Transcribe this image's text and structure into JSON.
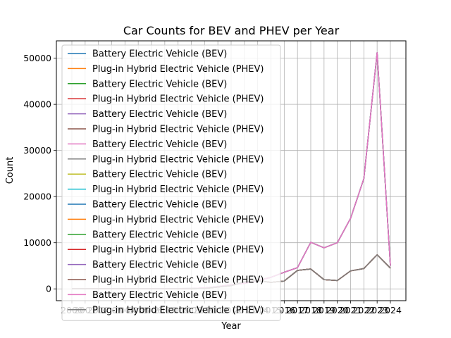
{
  "chart_data": {
    "type": "line",
    "title": "Car Counts for BEV and PHEV per Year",
    "xlabel": "Year",
    "ylabel": "Count",
    "categories": [
      "2000",
      "2001",
      "2002",
      "2003",
      "2004",
      "2005",
      "2006",
      "2007",
      "2008",
      "2009",
      "2010",
      "2011",
      "2012",
      "2013",
      "2014",
      "2015",
      "2016",
      "2017",
      "2018",
      "2019",
      "2020",
      "2021",
      "2022",
      "2023",
      "2024"
    ],
    "y_ticks": [
      0,
      10000,
      20000,
      30000,
      40000,
      50000
    ],
    "y_tick_labels": [
      "0",
      "10000",
      "20000",
      "30000",
      "40000",
      "50000"
    ],
    "ylim": [
      -2560,
      53760
    ],
    "grid": true,
    "legend_position": "upper-left",
    "series": [
      {
        "name": "Battery Electric Vehicle (BEV)",
        "color": "#1f77b4",
        "values": [
          10,
          10,
          20,
          30,
          20,
          30,
          30,
          40,
          40,
          50,
          100,
          400,
          700,
          1500,
          1800,
          1400,
          1700,
          4000,
          4300,
          2000,
          1800,
          3900,
          4400,
          7400,
          4500
        ]
      },
      {
        "name": "Plug-in Hybrid Electric Vehicle (PHEV)",
        "color": "#ff7f0e",
        "values": [
          10,
          10,
          20,
          30,
          20,
          30,
          30,
          40,
          40,
          50,
          100,
          400,
          700,
          1500,
          1800,
          1400,
          1700,
          4000,
          4300,
          2000,
          1800,
          3900,
          4400,
          7400,
          4500
        ]
      },
      {
        "name": "Battery Electric Vehicle (BEV)",
        "color": "#2ca02c",
        "values": [
          10,
          10,
          20,
          30,
          20,
          30,
          30,
          40,
          40,
          50,
          100,
          400,
          700,
          1500,
          1800,
          1400,
          1700,
          4000,
          4300,
          2000,
          1800,
          3900,
          4400,
          7400,
          4500
        ]
      },
      {
        "name": "Plug-in Hybrid Electric Vehicle (PHEV)",
        "color": "#d62728",
        "values": [
          10,
          10,
          20,
          30,
          20,
          30,
          30,
          40,
          40,
          50,
          100,
          400,
          700,
          1500,
          1800,
          1400,
          1700,
          4000,
          4300,
          2000,
          1800,
          3900,
          4400,
          7400,
          4500
        ]
      },
      {
        "name": "Battery Electric Vehicle (BEV)",
        "color": "#9467bd",
        "values": [
          10,
          10,
          20,
          30,
          20,
          30,
          30,
          40,
          40,
          50,
          100,
          400,
          700,
          1500,
          1800,
          1400,
          1700,
          4000,
          4300,
          2000,
          1800,
          3900,
          4400,
          7400,
          4500
        ]
      },
      {
        "name": "Plug-in Hybrid Electric Vehicle (PHEV)",
        "color": "#8c564b",
        "values": [
          10,
          10,
          20,
          30,
          20,
          30,
          30,
          40,
          40,
          50,
          100,
          400,
          700,
          1500,
          1800,
          1400,
          1700,
          4000,
          4300,
          2000,
          1800,
          3900,
          4400,
          7400,
          4500
        ]
      },
      {
        "name": "Battery Electric Vehicle (BEV)",
        "color": "#e377c2",
        "values": [
          10,
          10,
          20,
          30,
          20,
          30,
          30,
          50,
          60,
          100,
          200,
          500,
          900,
          1200,
          1800,
          2500,
          3600,
          4600,
          10100,
          8900,
          10000,
          15300,
          23900,
          51200,
          5000
        ]
      },
      {
        "name": "Plug-in Hybrid Electric Vehicle (PHEV)",
        "color": "#7f7f7f",
        "values": [
          10,
          10,
          20,
          30,
          20,
          30,
          30,
          40,
          40,
          50,
          100,
          400,
          700,
          1500,
          1800,
          1400,
          1700,
          4000,
          4300,
          2000,
          1800,
          3900,
          4400,
          7400,
          4500
        ]
      },
      {
        "name": "Battery Electric Vehicle (BEV)",
        "color": "#bcbd22",
        "values": [
          10,
          10,
          20,
          30,
          20,
          30,
          30,
          50,
          60,
          100,
          200,
          500,
          900,
          1200,
          1800,
          2500,
          3600,
          4600,
          10100,
          8900,
          10000,
          15300,
          23900,
          51200,
          5000
        ]
      },
      {
        "name": "Plug-in Hybrid Electric Vehicle (PHEV)",
        "color": "#17becf",
        "values": [
          10,
          10,
          20,
          30,
          20,
          30,
          30,
          40,
          40,
          50,
          100,
          400,
          700,
          1500,
          1800,
          1400,
          1700,
          4000,
          4300,
          2000,
          1800,
          3900,
          4400,
          7400,
          4500
        ]
      },
      {
        "name": "Battery Electric Vehicle (BEV)",
        "color": "#1f77b4",
        "values": [
          10,
          10,
          20,
          30,
          20,
          30,
          30,
          50,
          60,
          100,
          200,
          500,
          900,
          1200,
          1800,
          2500,
          3600,
          4600,
          10100,
          8900,
          10000,
          15300,
          23900,
          51200,
          5000
        ]
      },
      {
        "name": "Plug-in Hybrid Electric Vehicle (PHEV)",
        "color": "#ff7f0e",
        "values": [
          10,
          10,
          20,
          30,
          20,
          30,
          30,
          40,
          40,
          50,
          100,
          400,
          700,
          1500,
          1800,
          1400,
          1700,
          4000,
          4300,
          2000,
          1800,
          3900,
          4400,
          7400,
          4500
        ]
      },
      {
        "name": "Battery Electric Vehicle (BEV)",
        "color": "#2ca02c",
        "values": [
          10,
          10,
          20,
          30,
          20,
          30,
          30,
          50,
          60,
          100,
          200,
          500,
          900,
          1200,
          1800,
          2500,
          3600,
          4600,
          10100,
          8900,
          10000,
          15300,
          23900,
          51200,
          5000
        ]
      },
      {
        "name": "Plug-in Hybrid Electric Vehicle (PHEV)",
        "color": "#d62728",
        "values": [
          10,
          10,
          20,
          30,
          20,
          30,
          30,
          40,
          40,
          50,
          100,
          400,
          700,
          1500,
          1800,
          1400,
          1700,
          4000,
          4300,
          2000,
          1800,
          3900,
          4400,
          7400,
          4500
        ]
      },
      {
        "name": "Battery Electric Vehicle (BEV)",
        "color": "#9467bd",
        "values": [
          10,
          10,
          20,
          30,
          20,
          30,
          30,
          50,
          60,
          100,
          200,
          500,
          900,
          1200,
          1800,
          2500,
          3600,
          4600,
          10100,
          8900,
          10000,
          15300,
          23900,
          51200,
          5000
        ]
      },
      {
        "name": "Plug-in Hybrid Electric Vehicle (PHEV)",
        "color": "#8c564b",
        "values": [
          10,
          10,
          20,
          30,
          20,
          30,
          30,
          40,
          40,
          50,
          100,
          400,
          700,
          1500,
          1800,
          1400,
          1700,
          4000,
          4300,
          2000,
          1800,
          3900,
          4400,
          7400,
          4500
        ]
      },
      {
        "name": "Battery Electric Vehicle (BEV)",
        "color": "#e377c2",
        "values": [
          10,
          10,
          20,
          30,
          20,
          30,
          30,
          50,
          60,
          100,
          200,
          500,
          900,
          1200,
          1800,
          2500,
          3600,
          4600,
          10100,
          8900,
          10000,
          15300,
          23900,
          51200,
          5000
        ]
      },
      {
        "name": "Plug-in Hybrid Electric Vehicle (PHEV)",
        "color": "#7f7f7f",
        "values": [
          10,
          10,
          20,
          30,
          20,
          30,
          30,
          40,
          40,
          50,
          100,
          400,
          700,
          1500,
          1800,
          1400,
          1700,
          4000,
          4300,
          2000,
          1800,
          3900,
          4400,
          7400,
          4500
        ]
      }
    ]
  }
}
